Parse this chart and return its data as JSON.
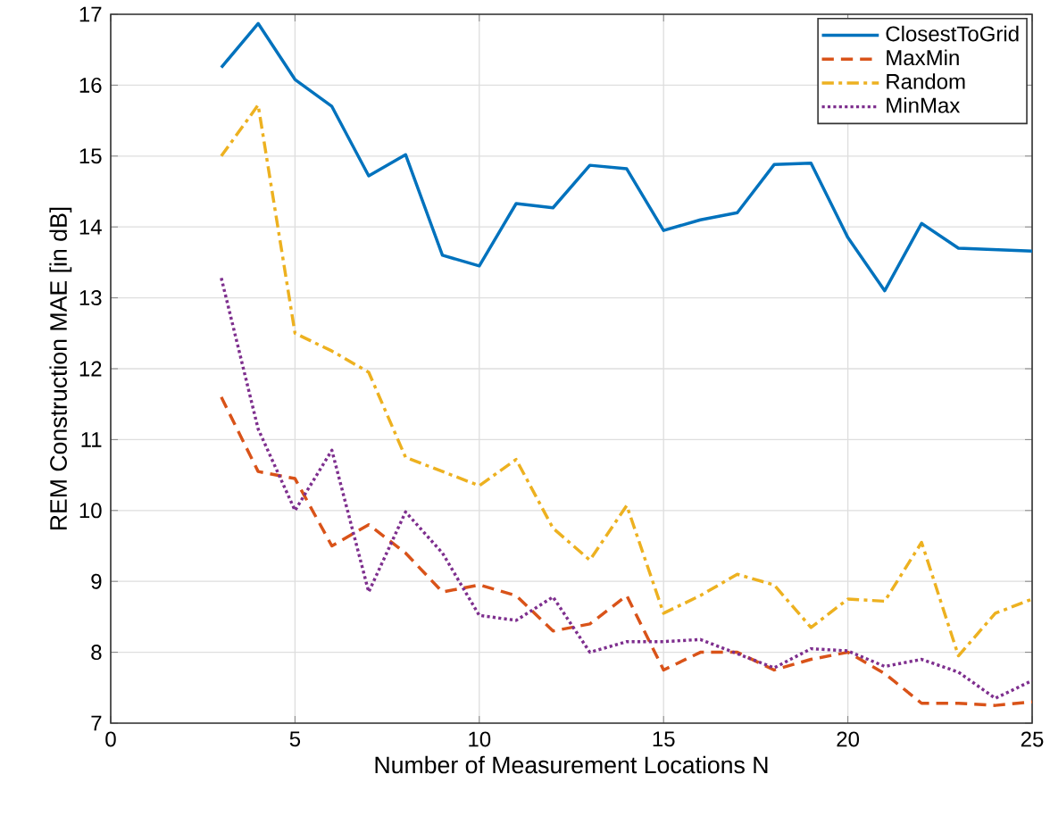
{
  "chart_data": {
    "type": "line",
    "xlabel": "Number of Measurement Locations N",
    "ylabel": "REM Construction MAE [in dB]",
    "x": [
      3,
      4,
      5,
      6,
      7,
      8,
      9,
      10,
      11,
      12,
      13,
      14,
      15,
      16,
      17,
      18,
      19,
      20,
      21,
      22,
      23,
      24,
      25
    ],
    "series": [
      {
        "name": "ClosestToGrid",
        "color": "#0072bd",
        "line_style": "solid",
        "values": [
          16.25,
          16.87,
          16.08,
          15.7,
          14.72,
          15.02,
          13.6,
          13.45,
          14.33,
          14.27,
          14.87,
          14.82,
          13.95,
          14.1,
          14.2,
          14.88,
          14.9,
          13.85,
          13.1,
          14.05,
          13.7,
          13.68,
          13.66
        ]
      },
      {
        "name": "MaxMin",
        "color": "#d95319",
        "line_style": "dashed",
        "values": [
          11.6,
          10.55,
          10.45,
          9.5,
          9.8,
          9.4,
          8.85,
          8.95,
          8.8,
          8.3,
          8.4,
          8.8,
          7.75,
          8.0,
          8.0,
          7.75,
          7.9,
          8.0,
          7.7,
          7.28,
          7.28,
          7.25,
          7.3
        ]
      },
      {
        "name": "Random",
        "color": "#edb120",
        "line_style": "dashdot",
        "values": [
          15.0,
          15.72,
          12.5,
          12.25,
          11.95,
          10.75,
          10.55,
          10.35,
          10.72,
          9.75,
          9.3,
          10.07,
          8.55,
          8.8,
          9.1,
          8.95,
          8.35,
          8.75,
          8.72,
          9.55,
          7.95,
          8.55,
          8.75
        ]
      },
      {
        "name": "MinMax",
        "color": "#7e2f8e",
        "line_style": "dotted",
        "values": [
          13.28,
          11.15,
          10.0,
          10.85,
          8.85,
          9.98,
          9.4,
          8.52,
          8.45,
          8.78,
          8.0,
          8.15,
          8.15,
          8.18,
          7.98,
          7.78,
          8.05,
          8.02,
          7.8,
          7.9,
          7.72,
          7.35,
          7.6
        ]
      }
    ],
    "xlim": [
      0,
      25
    ],
    "xticks": [
      0,
      5,
      10,
      15,
      20,
      25
    ],
    "ylim": [
      7,
      17
    ],
    "yticks": [
      7,
      8,
      9,
      10,
      11,
      12,
      13,
      14,
      15,
      16,
      17
    ],
    "grid": true,
    "legend": "top right",
    "marker": "none"
  }
}
